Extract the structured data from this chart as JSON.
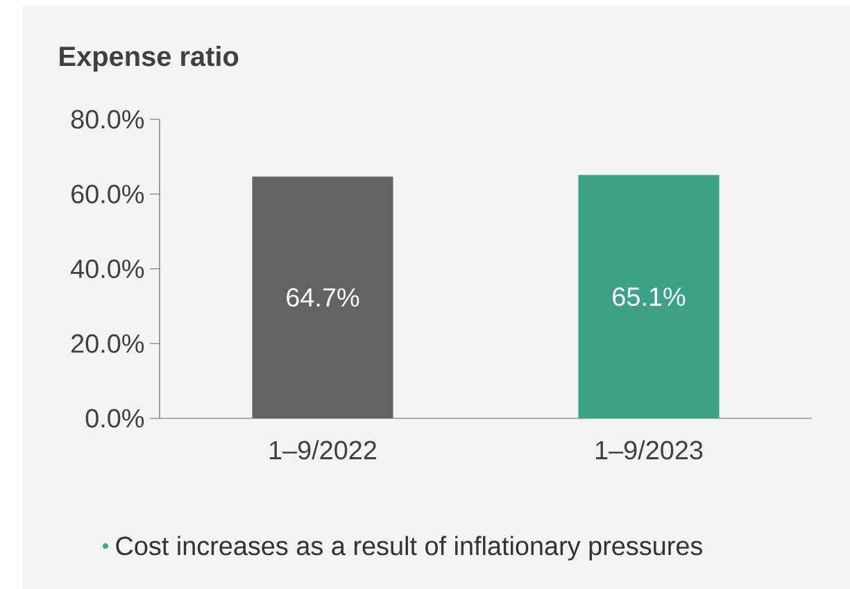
{
  "chart_data": {
    "type": "bar",
    "title": "Expense ratio",
    "categories": [
      "1–9/2022",
      "1–9/2023"
    ],
    "values": [
      64.7,
      65.1
    ],
    "colors": [
      "#636363",
      "#3da184"
    ],
    "value_labels": [
      "64.7%",
      "65.1%"
    ],
    "ylim": [
      0,
      80
    ],
    "yticks": [
      {
        "value": 0,
        "label": "0.0%"
      },
      {
        "value": 20,
        "label": "20.0%"
      },
      {
        "value": 40,
        "label": "40.0%"
      },
      {
        "value": 60,
        "label": "60.0%"
      },
      {
        "value": 80,
        "label": "80.0%"
      }
    ],
    "annotations": [
      "Cost increases as a result of inflationary pressures"
    ]
  }
}
